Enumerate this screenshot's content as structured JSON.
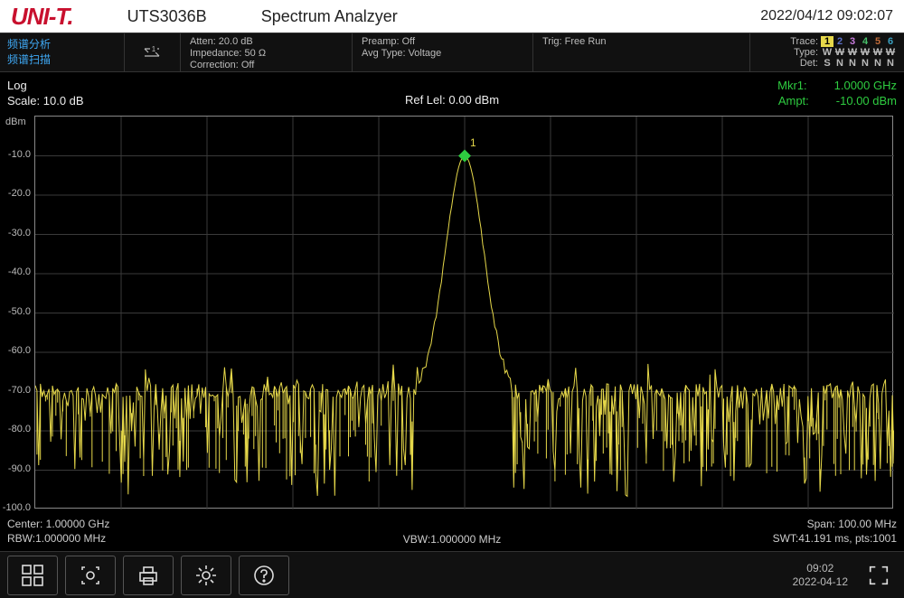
{
  "brand": "UNI-T",
  "model": "UTS3036B",
  "app_title": "Spectrum Analzyer",
  "datetime_top": "2022/04/12 09:02:07",
  "cn_mode1": "频谱分析",
  "cn_mode2": "频谱扫描",
  "atten": "Atten: 20.0 dB",
  "impedance": "Impedance: 50 Ω",
  "correction": "Correction: Off",
  "preamp": "Preamp: Off",
  "avg_type": "Avg Type: Voltage",
  "trig": "Trig: Free Run",
  "trace_nums": [
    "1",
    "2",
    "3",
    "4",
    "5",
    "6"
  ],
  "trace_colors": [
    "#e6d84a",
    "#5b6fc7",
    "#c77bdc",
    "#49c16b",
    "#bf6a38",
    "#3aa0c0"
  ],
  "trace_active_bg": "#e6d84a",
  "trace_type_label": "Type:",
  "trace_types": [
    "W",
    "W",
    "W",
    "W",
    "W",
    "W"
  ],
  "trace_type_strike": [
    false,
    true,
    true,
    true,
    true,
    true
  ],
  "trace_det_label": "Det:",
  "trace_dets": [
    "S",
    "N",
    "N",
    "N",
    "N",
    "N"
  ],
  "log_label": "Log",
  "scale_label": "Scale: 10.0 dB",
  "ref_label": "Ref Lel: 0.00 dBm",
  "marker_name": "Mkr1:",
  "marker_freq": "1.0000 GHz",
  "ampt_label": "Ampt:",
  "ampt_val": "-10.00 dBm",
  "y_unit": "dBm",
  "y_labels": [
    "-10.0",
    "-20.0",
    "-30.0",
    "-40.0",
    "-50.0",
    "-60.0",
    "-70.0",
    "-80.0",
    "-90.0",
    "-100.0"
  ],
  "center": "Center: 1.00000 GHz",
  "rbw": "RBW:1.000000 MHz",
  "vbw": "VBW:1.000000 MHz",
  "span": "Span: 100.00 MHz",
  "swt": "SWT:41.191 ms, pts:1001",
  "bb_time": "09:02",
  "bb_date": "2022-04-12",
  "chart": {
    "type": "line",
    "ylim": [
      -100,
      0
    ],
    "xlim": [
      0,
      1000
    ],
    "grid_divs_x": 10,
    "grid_divs_y": 10,
    "trace_color": "#e6d84a",
    "grid_color": "#3a3a3a",
    "bg_color": "#000000",
    "marker_color": "#2ecc40",
    "noise_floor": -70,
    "noise_jitter": 12,
    "peak_x": 500,
    "peak_y": -10,
    "peak_width": 22,
    "marker_label": "1",
    "num_points": 500
  }
}
